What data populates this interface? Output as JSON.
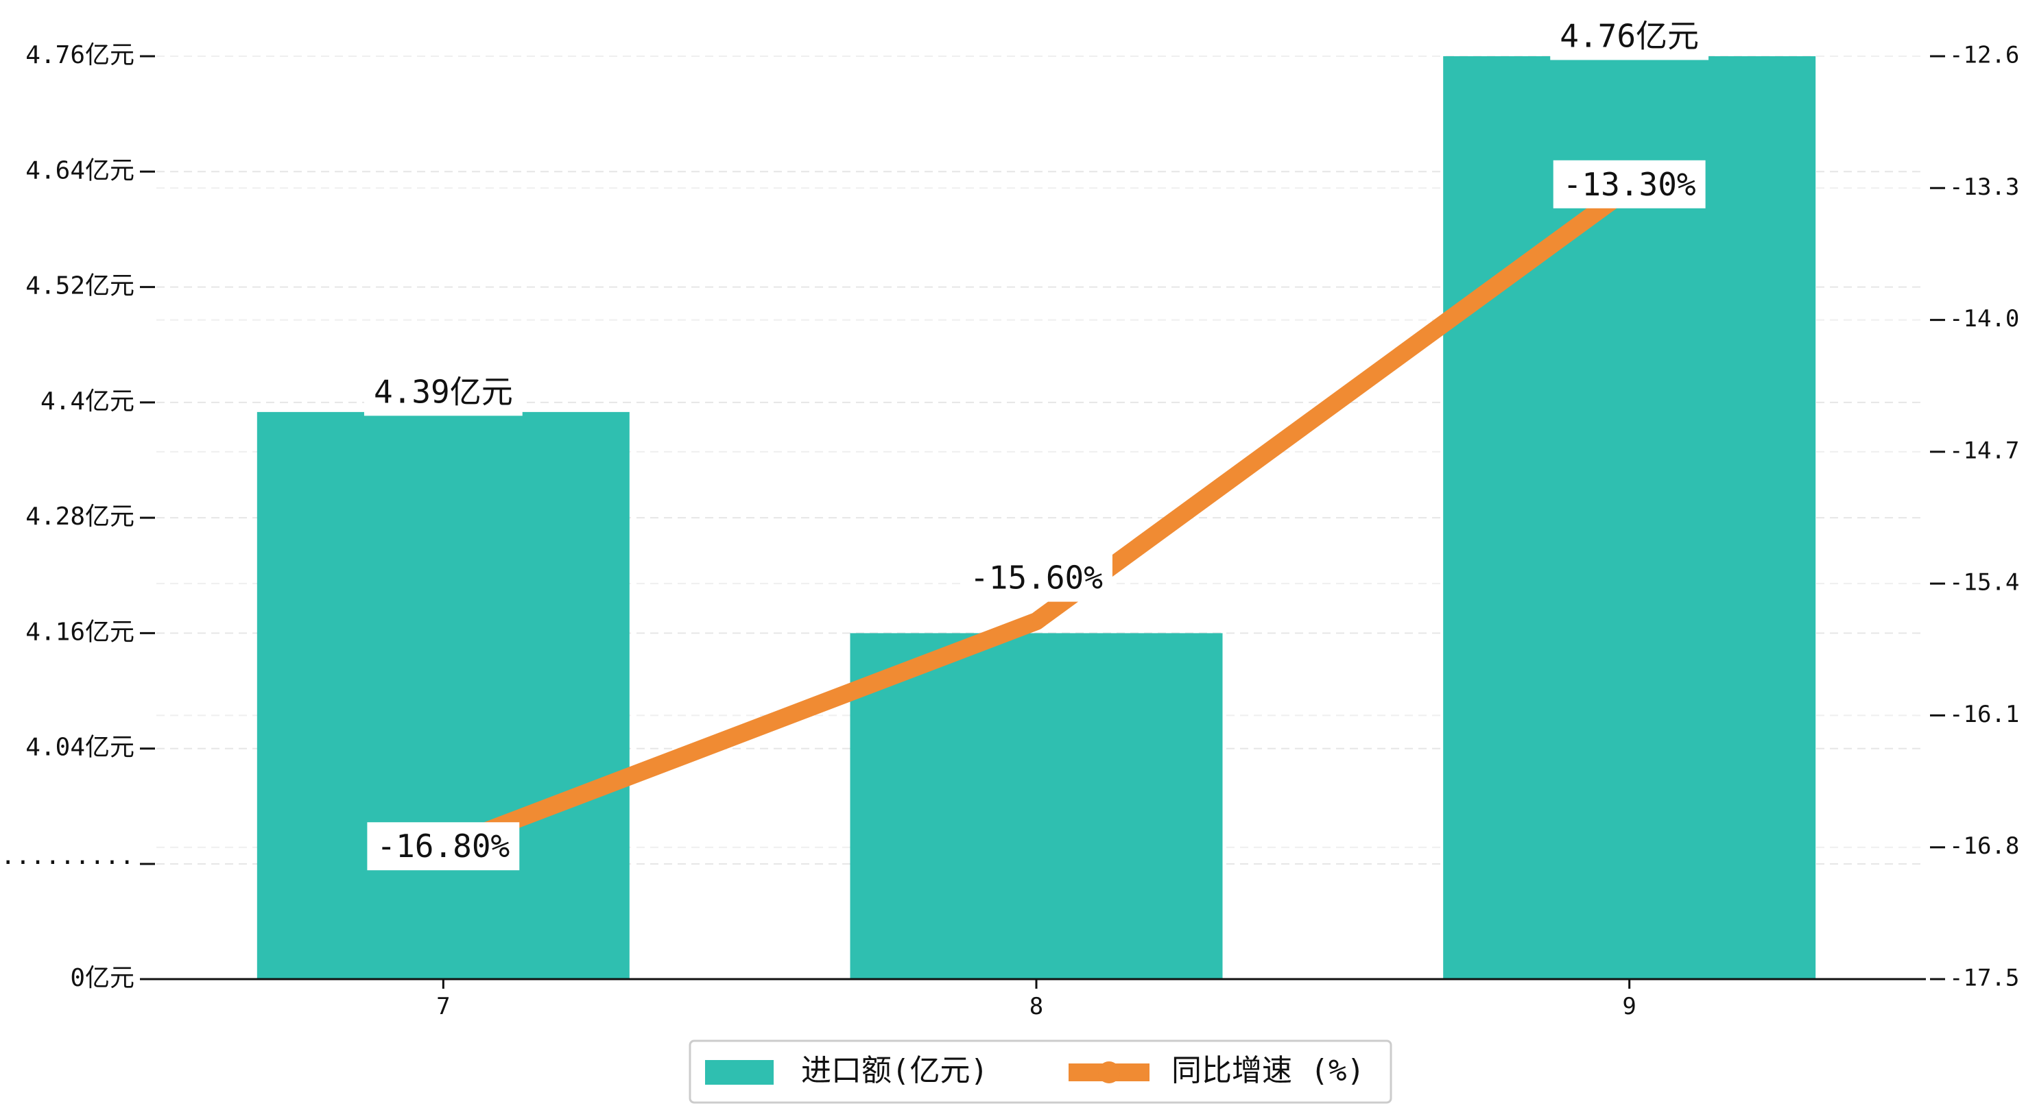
{
  "chart_data": {
    "type": "bar+line",
    "categories": [
      "7",
      "8",
      "9"
    ],
    "series": [
      {
        "name": "进口额(亿元)",
        "type": "bar",
        "axis": "left",
        "values": [
          4.39,
          4.16,
          4.76
        ],
        "labels": [
          "4.39亿元",
          "",
          "4.76亿元"
        ],
        "color": "#2FBFB0"
      },
      {
        "name": "同比增速 (%)",
        "type": "line",
        "axis": "right",
        "values": [
          -16.8,
          -15.6,
          -13.3
        ],
        "labels": [
          "-16.80%",
          "-15.60%",
          "-13.30%"
        ],
        "color": "#F08B33"
      }
    ],
    "left_axis": {
      "ticks": [
        "0亿元",
        "·········",
        "4.04亿元",
        "4.16亿元",
        "4.28亿元",
        "4.4亿元",
        "4.52亿元",
        "4.64亿元",
        "4.76亿元"
      ],
      "broken": true,
      "break_marker": "·········",
      "upper_range": [
        3.92,
        4.76
      ],
      "baseline_label": "0亿元"
    },
    "right_axis": {
      "ticks": [
        "-17.5",
        "-16.8",
        "-16.1",
        "-15.4",
        "-14.7",
        "-14.0",
        "-13.3",
        "-12.6"
      ],
      "range": [
        -17.5,
        -12.6
      ]
    },
    "grid": "horizontal dashed",
    "legend_position": "bottom-center"
  }
}
